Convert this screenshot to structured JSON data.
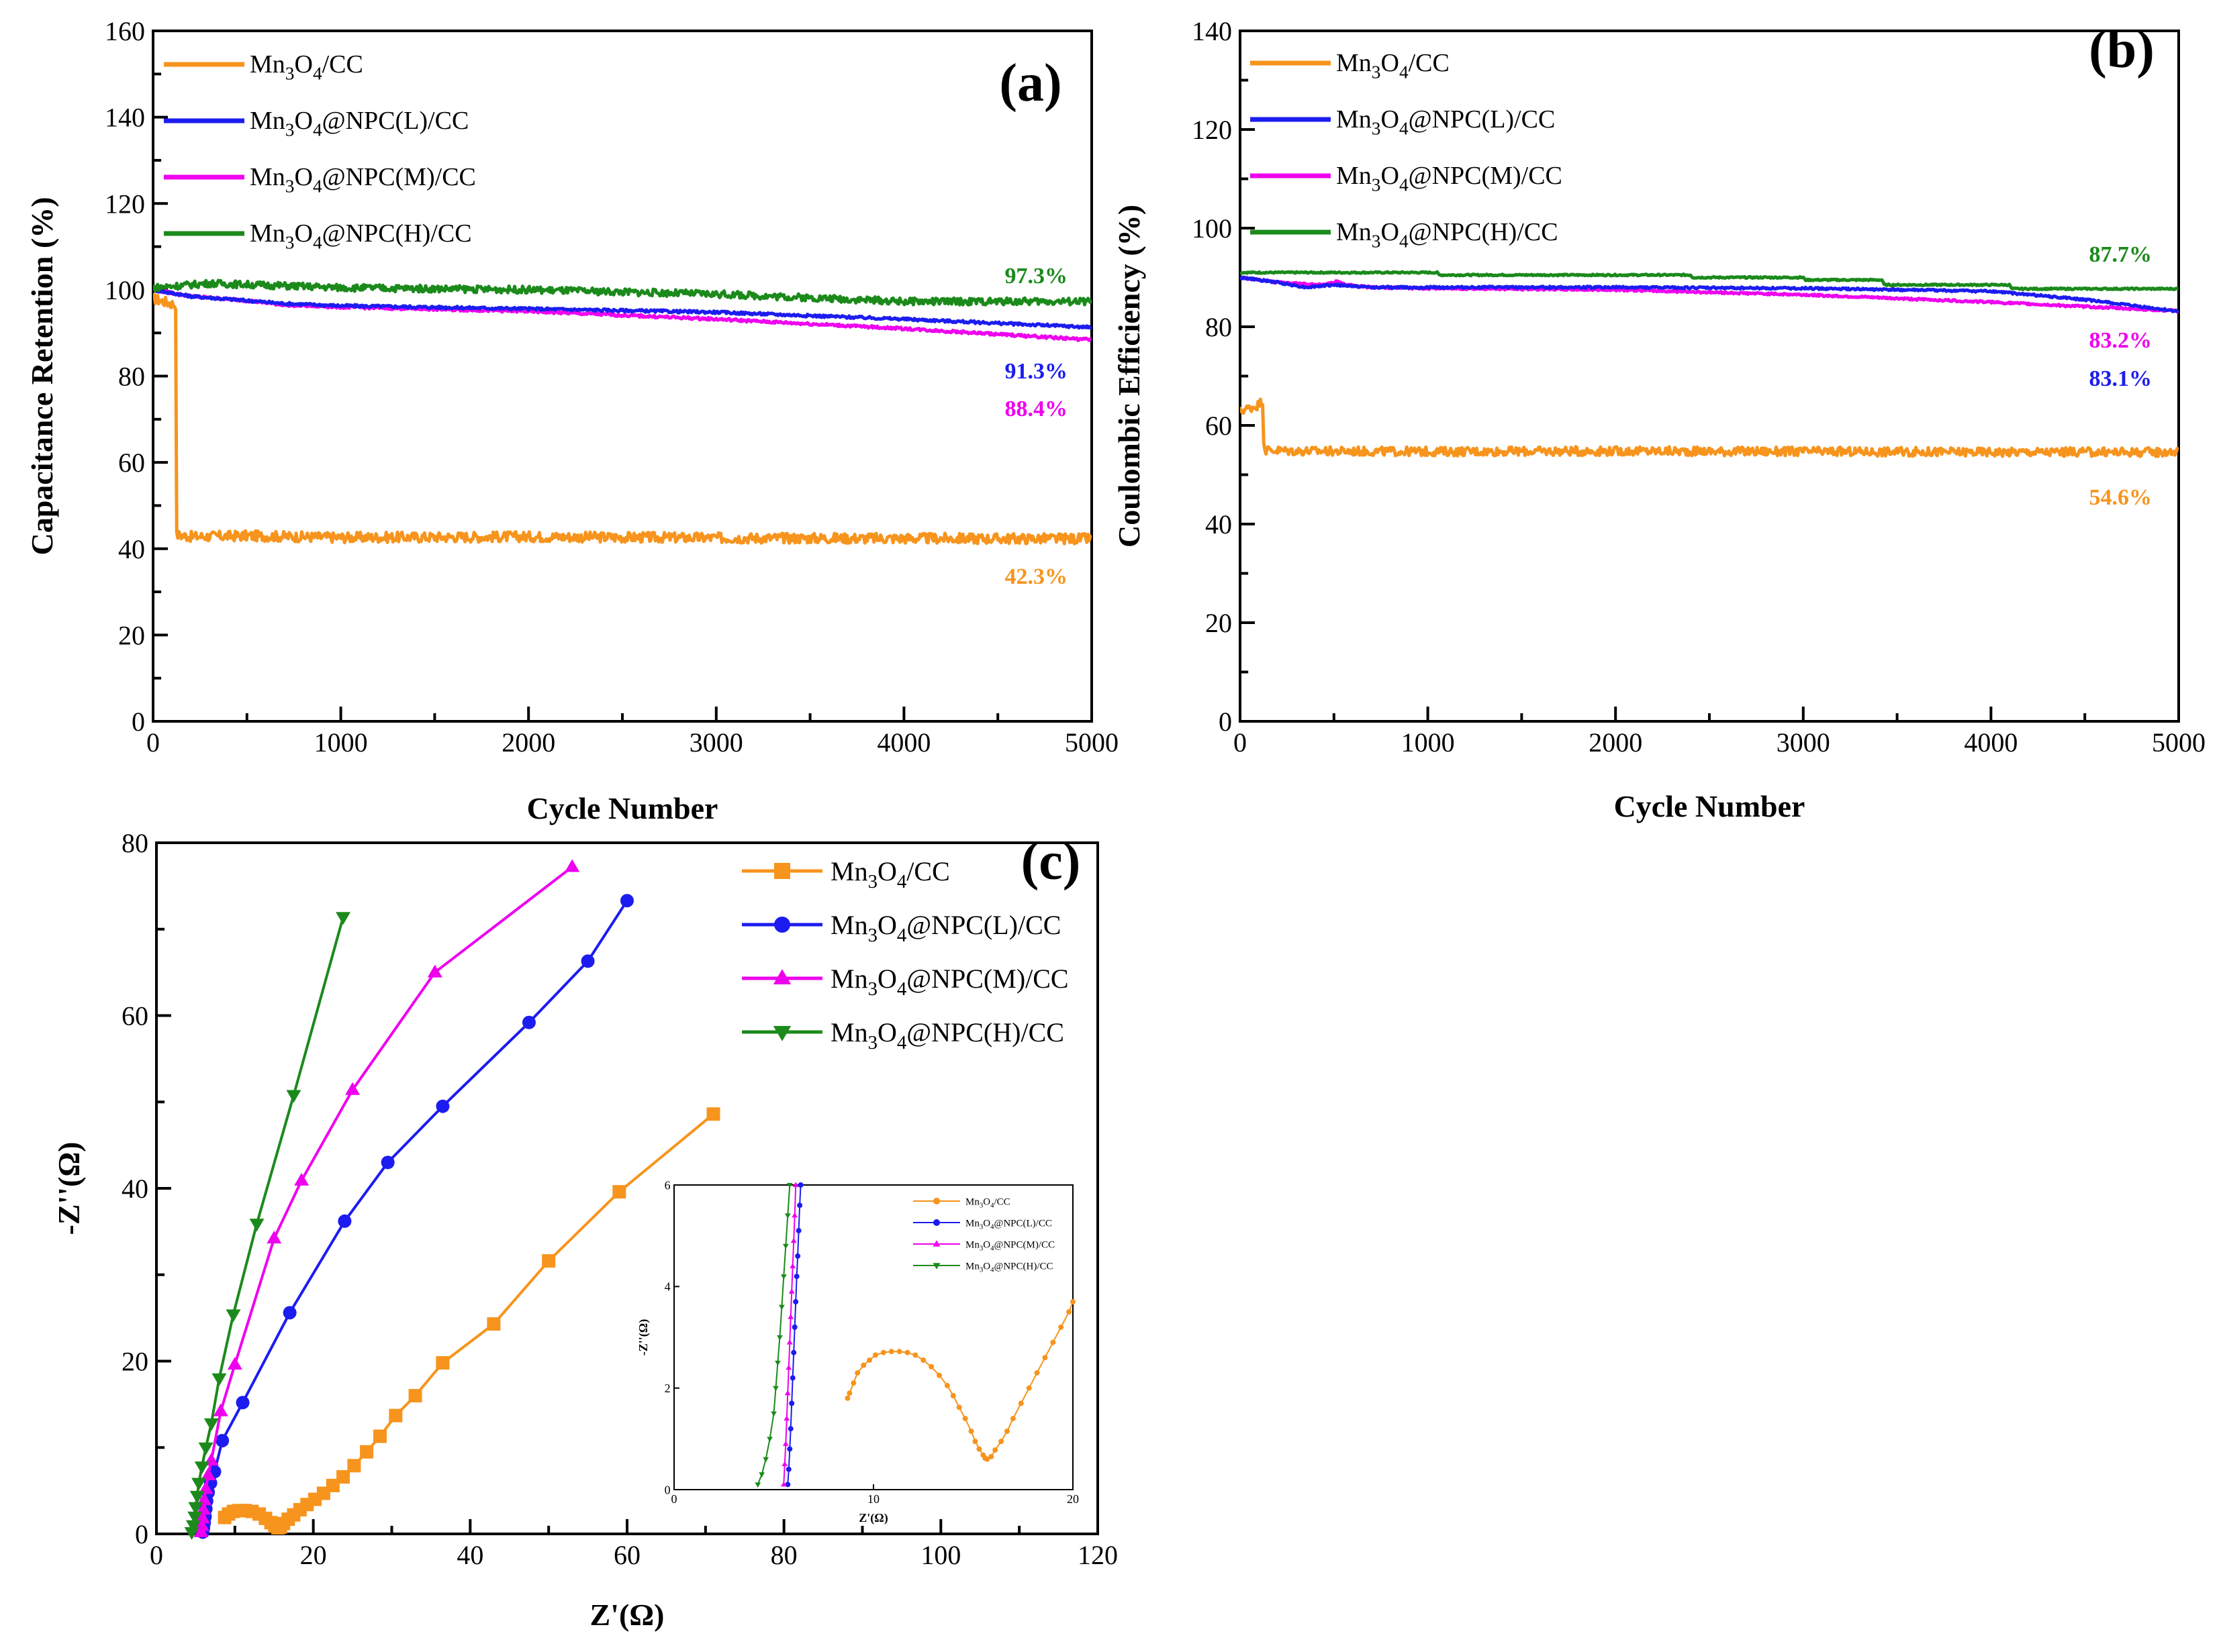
{
  "colors": {
    "orange": "#F7941D",
    "blue": "#1C1CF0",
    "magenta": "#EE00EE",
    "green": "#1B8A1B"
  },
  "chart_data": [
    {
      "id": "a",
      "panel_label": "(a)",
      "type": "line",
      "xlabel": "Cycle Number",
      "ylabel": "Capacitance Retention (%)",
      "xlim": [
        0,
        5000
      ],
      "ylim": [
        0,
        160
      ],
      "xticks": [
        0,
        1000,
        2000,
        3000,
        4000,
        5000
      ],
      "yticks": [
        0,
        20,
        40,
        60,
        80,
        100,
        120,
        140,
        160
      ],
      "legend": {
        "position": "top-left"
      },
      "series": [
        {
          "name": "Mn3O4/CC",
          "sub": [
            "Mn",
            "3",
            "O",
            "4",
            "/CC"
          ],
          "color": "orange",
          "x": [
            0,
            40,
            80,
            120,
            125,
            130,
            200,
            500,
            1000,
            2000,
            3000,
            4000,
            5000
          ],
          "y": [
            98,
            97.5,
            97,
            96.5,
            43,
            43.2,
            42.8,
            43,
            42.6,
            42.8,
            42.5,
            42.4,
            42.3
          ],
          "noise": 1.2,
          "end_label": "42.3%"
        },
        {
          "name": "Mn3O4@NPC(L)/CC",
          "sub": [
            "Mn",
            "3",
            "O",
            "4",
            "@NPC(L)/CC"
          ],
          "color": "blue",
          "x": [
            0,
            200,
            500,
            700,
            1000,
            2000,
            3000,
            4000,
            5000
          ],
          "y": [
            100,
            98.5,
            97.5,
            96.8,
            96.3,
            95.6,
            94.8,
            93.2,
            91.3
          ],
          "noise": 0.3,
          "end_label": "91.3%"
        },
        {
          "name": "Mn3O4@NPC(M)/CC",
          "sub": [
            "Mn",
            "3",
            "O",
            "4",
            "@NPC(M)/CC"
          ],
          "color": "magenta",
          "x": [
            0,
            200,
            500,
            700,
            1000,
            2000,
            3000,
            4000,
            5000
          ],
          "y": [
            100,
            98.5,
            97.5,
            96.5,
            96,
            95,
            93.2,
            91,
            88.4
          ],
          "noise": 0.3,
          "end_label": "88.4%"
        },
        {
          "name": "Mn3O4@NPC(H)/CC",
          "sub": [
            "Mn",
            "3",
            "O",
            "4",
            "@NPC(H)/CC"
          ],
          "color": "green",
          "x": [
            0,
            300,
            1000,
            2000,
            3000,
            3600,
            4000,
            5000
          ],
          "y": [
            100.5,
            101.5,
            100.5,
            100,
            99,
            98,
            97.3,
            97.3
          ],
          "noise": 0.8,
          "end_label": "97.3%"
        }
      ]
    },
    {
      "id": "b",
      "panel_label": "(b)",
      "type": "line",
      "xlabel": "Cycle Number",
      "ylabel": "Coulombic Efficiency (%)",
      "xlim": [
        0,
        5000
      ],
      "ylim": [
        0,
        140
      ],
      "xticks": [
        0,
        1000,
        2000,
        3000,
        4000,
        5000
      ],
      "yticks": [
        0,
        20,
        40,
        60,
        80,
        100,
        120,
        140
      ],
      "legend": {
        "position": "top-left"
      },
      "series": [
        {
          "name": "Mn3O4/CC",
          "sub": [
            "Mn",
            "3",
            "O",
            "4",
            "/CC"
          ],
          "color": "orange",
          "x": [
            0,
            50,
            90,
            120,
            125,
            135,
            300,
            1000,
            2000,
            3000,
            4000,
            5000
          ],
          "y": [
            63,
            63.5,
            64,
            65,
            57,
            55,
            54.8,
            54.7,
            54.8,
            54.7,
            54.6,
            54.6
          ],
          "noise": 0.9,
          "end_label": "54.6%"
        },
        {
          "name": "Mn3O4@NPC(L)/CC",
          "sub": [
            "Mn",
            "3",
            "O",
            "4",
            "@NPC(L)/CC"
          ],
          "color": "blue",
          "x": [
            0,
            200,
            350,
            500,
            700,
            1000,
            2000,
            3000,
            4000,
            4500,
            5000
          ],
          "y": [
            90,
            89,
            88,
            88.5,
            88,
            88,
            88,
            87.8,
            87.2,
            85.5,
            83.1
          ],
          "noise": 0.2,
          "end_label": "83.1%"
        },
        {
          "name": "Mn3O4@NPC(M)/CC",
          "sub": [
            "Mn",
            "3",
            "O",
            "4",
            "@NPC(M)/CC"
          ],
          "color": "magenta",
          "x": [
            0,
            200,
            450,
            520,
            560,
            700,
            1000,
            2000,
            3000,
            4000,
            5000
          ],
          "y": [
            90,
            89,
            88.5,
            89.2,
            88.5,
            88,
            87.8,
            87.5,
            86.5,
            85,
            83.2
          ],
          "noise": 0.2,
          "end_label": "83.2%"
        },
        {
          "name": "Mn3O4@NPC(H)/CC",
          "sub": [
            "Mn",
            "3",
            "O",
            "4",
            "@NPC(H)/CC"
          ],
          "color": "green",
          "x": [
            0,
            1050,
            1060,
            2400,
            2410,
            3000,
            3010,
            3420,
            3430,
            4100,
            4110,
            5000
          ],
          "y": [
            91,
            91,
            90.5,
            90.5,
            90,
            90,
            89.5,
            89.5,
            88.5,
            88.5,
            87.7,
            87.7
          ],
          "noise": 0.15,
          "end_label": "87.7%"
        }
      ]
    },
    {
      "id": "c",
      "panel_label": "(c)",
      "type": "scatter",
      "xlabel": "Z'(Ω)",
      "ylabel": "-Z''(Ω)",
      "xlim": [
        0,
        120
      ],
      "ylim": [
        0,
        80
      ],
      "xticks": [
        0,
        20,
        40,
        60,
        80,
        100,
        120
      ],
      "yticks": [
        0,
        20,
        40,
        60,
        80
      ],
      "legend": {
        "position": "top-right"
      },
      "series": [
        {
          "name": "Mn3O4/CC",
          "sub": [
            "Mn",
            "3",
            "O",
            "4",
            "/CC"
          ],
          "color": "orange",
          "marker": "square",
          "x": [
            8.7,
            9.2,
            9.8,
            10.5,
            11.3,
            12.2,
            13.1,
            13.9,
            14.6,
            15.1,
            15.5,
            15.8,
            16.2,
            16.8,
            17.5,
            18.3,
            19.2,
            20.2,
            21.3,
            22.5,
            23.8,
            25.2,
            26.8,
            28.5,
            30.5,
            33.0,
            36.5,
            43.0,
            50.0,
            59.0,
            71.0
          ],
          "y": [
            1.9,
            2.3,
            2.6,
            2.7,
            2.7,
            2.6,
            2.3,
            1.8,
            1.3,
            0.9,
            0.7,
            0.8,
            1.2,
            1.7,
            2.2,
            2.8,
            3.4,
            4.0,
            4.7,
            5.6,
            6.6,
            7.9,
            9.5,
            11.3,
            13.7,
            16.0,
            19.8,
            24.3,
            31.6,
            39.6,
            48.6
          ]
        },
        {
          "name": "Mn3O4@NPC(L)/CC",
          "sub": [
            "Mn",
            "3",
            "O",
            "4",
            "@NPC(L)/CC"
          ],
          "color": "blue",
          "marker": "circle",
          "x": [
            5.9,
            6.0,
            6.1,
            6.2,
            6.3,
            6.4,
            6.6,
            6.9,
            7.4,
            8.4,
            11.0,
            17.0,
            24.0,
            29.5,
            36.5,
            47.5,
            55.0,
            60.0
          ],
          "y": [
            0.2,
            0.7,
            1.3,
            2.0,
            2.9,
            3.8,
            4.8,
            5.9,
            7.2,
            10.8,
            15.2,
            25.6,
            36.2,
            43.0,
            49.5,
            59.2,
            66.3,
            73.3
          ]
        },
        {
          "name": "Mn3O4@NPC(M)/CC",
          "sub": [
            "Mn",
            "3",
            "O",
            "4",
            "@NPC(M)/CC"
          ],
          "color": "magenta",
          "marker": "triangle-up",
          "x": [
            5.7,
            5.8,
            5.9,
            6.0,
            6.1,
            6.3,
            6.6,
            7.0,
            8.2,
            10.0,
            15.0,
            18.5,
            25.0,
            35.5,
            53.0
          ],
          "y": [
            0.2,
            0.9,
            1.8,
            2.8,
            3.9,
            5.2,
            6.8,
            8.5,
            14.2,
            19.6,
            34.2,
            40.9,
            51.4,
            65.0,
            77.2
          ]
        },
        {
          "name": "Mn3O4@NPC(H)/CC",
          "sub": [
            "Mn",
            "3",
            "O",
            "4",
            "@NPC(H)/CC"
          ],
          "color": "green",
          "marker": "triangle-down",
          "x": [
            4.5,
            4.7,
            4.9,
            5.0,
            5.2,
            5.4,
            5.8,
            6.3,
            7.0,
            8.0,
            9.8,
            12.8,
            17.5,
            23.8
          ],
          "y": [
            0.2,
            1.0,
            2.0,
            3.1,
            4.4,
            5.9,
            7.8,
            10.0,
            12.8,
            18.0,
            25.4,
            35.9,
            50.8,
            71.4
          ]
        }
      ]
    },
    {
      "id": "c-inset",
      "type": "scatter",
      "xlabel": "Z'(Ω)",
      "ylabel": "-Z''(Ω)",
      "xlim": [
        0,
        20
      ],
      "ylim": [
        0,
        6
      ],
      "xticks": [
        0,
        10,
        20
      ],
      "yticks": [
        0,
        2,
        4,
        6
      ],
      "legend": {
        "position": "top-right"
      },
      "series": [
        {
          "name": "Mn3O4/CC",
          "sub": [
            "Mn",
            "3",
            "O",
            "4",
            "/CC"
          ],
          "color": "orange",
          "marker": "circle",
          "x": [
            8.7,
            8.8,
            9.0,
            9.2,
            9.5,
            9.8,
            10.1,
            10.5,
            10.9,
            11.3,
            11.7,
            12.1,
            12.5,
            12.9,
            13.3,
            13.7,
            14.0,
            14.3,
            14.6,
            14.9,
            15.1,
            15.3,
            15.5,
            15.6,
            15.7,
            15.9,
            16.1,
            16.4,
            16.7,
            17.0,
            17.4,
            17.8,
            18.2,
            18.6,
            19.0,
            19.4,
            19.8,
            20.0
          ],
          "y": [
            1.8,
            1.9,
            2.1,
            2.3,
            2.45,
            2.55,
            2.65,
            2.7,
            2.72,
            2.72,
            2.7,
            2.65,
            2.55,
            2.42,
            2.25,
            2.05,
            1.85,
            1.62,
            1.4,
            1.15,
            0.95,
            0.8,
            0.68,
            0.62,
            0.6,
            0.65,
            0.78,
            0.95,
            1.15,
            1.4,
            1.7,
            2.0,
            2.3,
            2.6,
            2.9,
            3.2,
            3.5,
            3.7
          ]
        },
        {
          "name": "Mn3O4@NPC(L)/CC",
          "sub": [
            "Mn",
            "3",
            "O",
            "4",
            "@NPC(L)/CC"
          ],
          "color": "blue",
          "marker": "circle",
          "x": [
            5.7,
            5.75,
            5.8,
            5.85,
            5.9,
            5.95,
            6.0,
            6.05,
            6.1,
            6.15,
            6.2,
            6.25,
            6.3,
            6.35
          ],
          "y": [
            0.1,
            0.4,
            0.8,
            1.2,
            1.7,
            2.2,
            2.7,
            3.2,
            3.7,
            4.2,
            4.6,
            5.1,
            5.6,
            6.0
          ]
        },
        {
          "name": "Mn3O4@NPC(M)/CC",
          "sub": [
            "Mn",
            "3",
            "O",
            "4",
            "@NPC(M)/CC"
          ],
          "color": "magenta",
          "marker": "triangle-up",
          "x": [
            5.5,
            5.55,
            5.6,
            5.65,
            5.7,
            5.75,
            5.8,
            5.85,
            5.9,
            5.95,
            6.0,
            6.05,
            6.1
          ],
          "y": [
            0.1,
            0.5,
            0.9,
            1.4,
            1.9,
            2.4,
            2.9,
            3.4,
            3.9,
            4.4,
            4.9,
            5.4,
            6.0
          ]
        },
        {
          "name": "Mn3O4@NPC(H)/CC",
          "sub": [
            "Mn",
            "3",
            "O",
            "4",
            "@NPC(H)/CC"
          ],
          "color": "green",
          "marker": "triangle-down",
          "x": [
            4.2,
            4.4,
            4.6,
            4.8,
            5.0,
            5.1,
            5.2,
            5.3,
            5.4,
            5.5,
            5.6,
            5.7,
            5.8
          ],
          "y": [
            0.1,
            0.3,
            0.6,
            1.0,
            1.5,
            2.0,
            2.5,
            3.0,
            3.6,
            4.2,
            4.8,
            5.4,
            6.0
          ]
        }
      ]
    }
  ]
}
